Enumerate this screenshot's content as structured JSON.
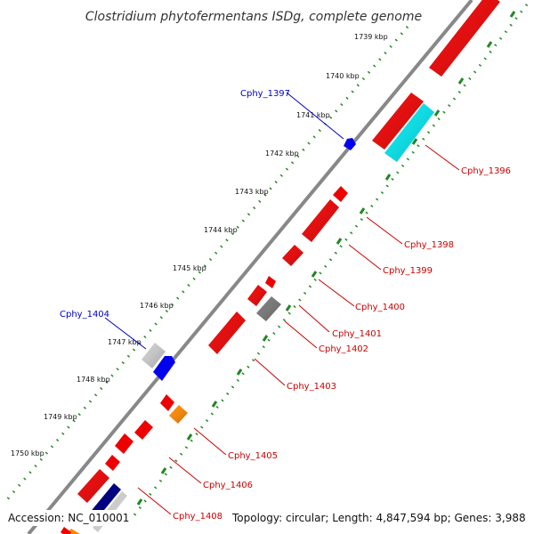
{
  "title": "Clostridium phytofermentans ISDg, complete genome",
  "footer": {
    "accession": "Accession: NC_010001",
    "summary": "Topology: circular; Length: 4,847,594 bp; Genes: 3,988"
  },
  "ticks": [
    "1739 kbp",
    "1740 kbp",
    "1741 kbp",
    "1742 kbp",
    "1743 kbp",
    "1744 kbp",
    "1745 kbp",
    "1746 kbp",
    "1747 kbp",
    "1748 kbp",
    "1749 kbp",
    "1750 kbp"
  ],
  "gene_labels": {
    "cphy_1396": "Cphy_1396",
    "cphy_1397": "Cphy_1397",
    "cphy_1398": "Cphy_1398",
    "cphy_1399": "Cphy_1399",
    "cphy_1400": "Cphy_1400",
    "cphy_1401": "Cphy_1401",
    "cphy_1402": "Cphy_1402",
    "cphy_1403": "Cphy_1403",
    "cphy_1404": "Cphy_1404",
    "cphy_1405": "Cphy_1405",
    "cphy_1406": "Cphy_1406",
    "cphy_1408": "Cphy_1408"
  },
  "colors": {
    "backbone": "#888888",
    "gene_red": "#ee0000",
    "gene_blue": "#0000ee",
    "gene_cyan": "#00e5ee",
    "gene_gray": "#cccccc",
    "gene_darkgray": "#777777",
    "gene_orange": "#ff8800",
    "gene_navy": "#000080",
    "dots": "#228822"
  }
}
